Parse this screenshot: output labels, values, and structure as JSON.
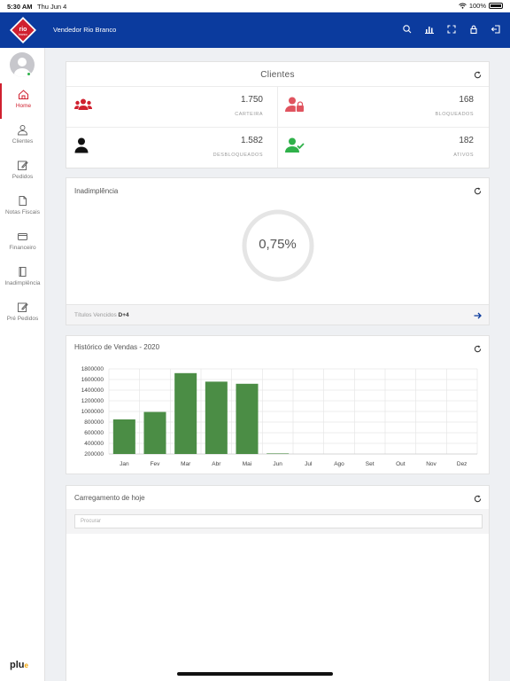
{
  "status": {
    "time": "5:30 AM",
    "date": "Thu Jun 4",
    "battery": "100%"
  },
  "header": {
    "title": "Vendedor Rio Branco",
    "logo_text": "rio branco"
  },
  "sidebar": {
    "items": [
      {
        "label": "Home",
        "icon": "home-icon"
      },
      {
        "label": "Clientes",
        "icon": "user-icon"
      },
      {
        "label": "Pedidos",
        "icon": "edit-icon"
      },
      {
        "label": "Notas Fiscais",
        "icon": "document-icon"
      },
      {
        "label": "Financeiro",
        "icon": "wallet-icon"
      },
      {
        "label": "Inadimplência",
        "icon": "book-icon"
      },
      {
        "label": "Pré Pedidos",
        "icon": "edit-icon"
      }
    ],
    "brand": "plu",
    "brand_suffix": "e"
  },
  "clientes": {
    "title": "Clientes",
    "carteira": {
      "value": "1.750",
      "label": "CARTEIRA"
    },
    "bloqueados": {
      "value": "168",
      "label": "BLOQUEADOS"
    },
    "desbloqueados": {
      "value": "1.582",
      "label": "DESBLOQUEADOS"
    },
    "ativos": {
      "value": "182",
      "label": "ATIVOS"
    }
  },
  "inadimplencia": {
    "title": "Inadimplência",
    "value": "0,75%",
    "footer_label": "Títulos Vencidos",
    "footer_value": "D+4"
  },
  "carregamento": {
    "title": "Carregamento de hoje",
    "search_placeholder": "Procurar"
  },
  "colors": {
    "header": "#0b3b9e",
    "accent_red": "#d0202f",
    "bar": "#4b8d45",
    "green": "#2fb14a"
  },
  "chart_data": {
    "type": "bar",
    "title": "Histórico de Vendas - 2020",
    "categories": [
      "Jan",
      "Fev",
      "Mar",
      "Abr",
      "Mai",
      "Jun",
      "Jul",
      "Ago",
      "Set",
      "Out",
      "Nov",
      "Dez"
    ],
    "series": [
      {
        "values": [
          850000,
          990000,
          1720000,
          1560000,
          1520000,
          210000,
          null,
          null,
          null,
          null,
          null,
          null
        ]
      }
    ],
    "ylim": [
      200000,
      1800000
    ],
    "yticks": [
      "1800000",
      "1600000",
      "1400000",
      "1200000",
      "1000000",
      "800000",
      "600000",
      "400000",
      "200000"
    ],
    "grid": true
  }
}
